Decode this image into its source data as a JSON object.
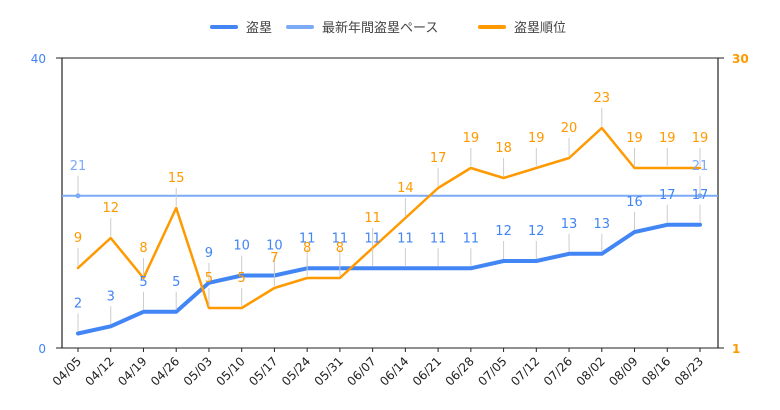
{
  "chart_data": {
    "type": "line",
    "categories": [
      "04/05",
      "04/12",
      "04/19",
      "04/26",
      "05/03",
      "05/10",
      "05/17",
      "05/24",
      "05/31",
      "06/07",
      "06/14",
      "06/21",
      "06/28",
      "07/05",
      "07/12",
      "07/26",
      "08/02",
      "08/09",
      "08/16",
      "08/23"
    ],
    "series": [
      {
        "name": "盗塁",
        "axis": "left",
        "color": "#4285f4",
        "values": [
          2,
          3,
          5,
          5,
          9,
          10,
          10,
          11,
          11,
          11,
          11,
          11,
          11,
          12,
          12,
          13,
          13,
          16,
          17,
          17
        ]
      },
      {
        "name": "最新年間盗塁ペース",
        "axis": "left",
        "color": "#7baaf7",
        "values": [
          21,
          21,
          21,
          21,
          21,
          21,
          21,
          21,
          21,
          21,
          21,
          21,
          21,
          21,
          21,
          21,
          21,
          21,
          21,
          21
        ],
        "labels_shown_at": [
          0,
          19
        ]
      },
      {
        "name": "盗塁順位",
        "axis": "right",
        "color": "#ff9900",
        "values": [
          9,
          12,
          8,
          15,
          5,
          5,
          7,
          8,
          8,
          11,
          14,
          17,
          19,
          18,
          19,
          20,
          23,
          19,
          19,
          19
        ]
      }
    ],
    "y_left": {
      "min": 0,
      "max": 40,
      "ticks": [
        "0",
        "40"
      ],
      "color": "#4285f4"
    },
    "y_right": {
      "min": 1,
      "max": 30,
      "ticks": [
        "1",
        "30"
      ],
      "color": "#ff9900"
    },
    "legend_position": "top-center",
    "grid": false
  }
}
